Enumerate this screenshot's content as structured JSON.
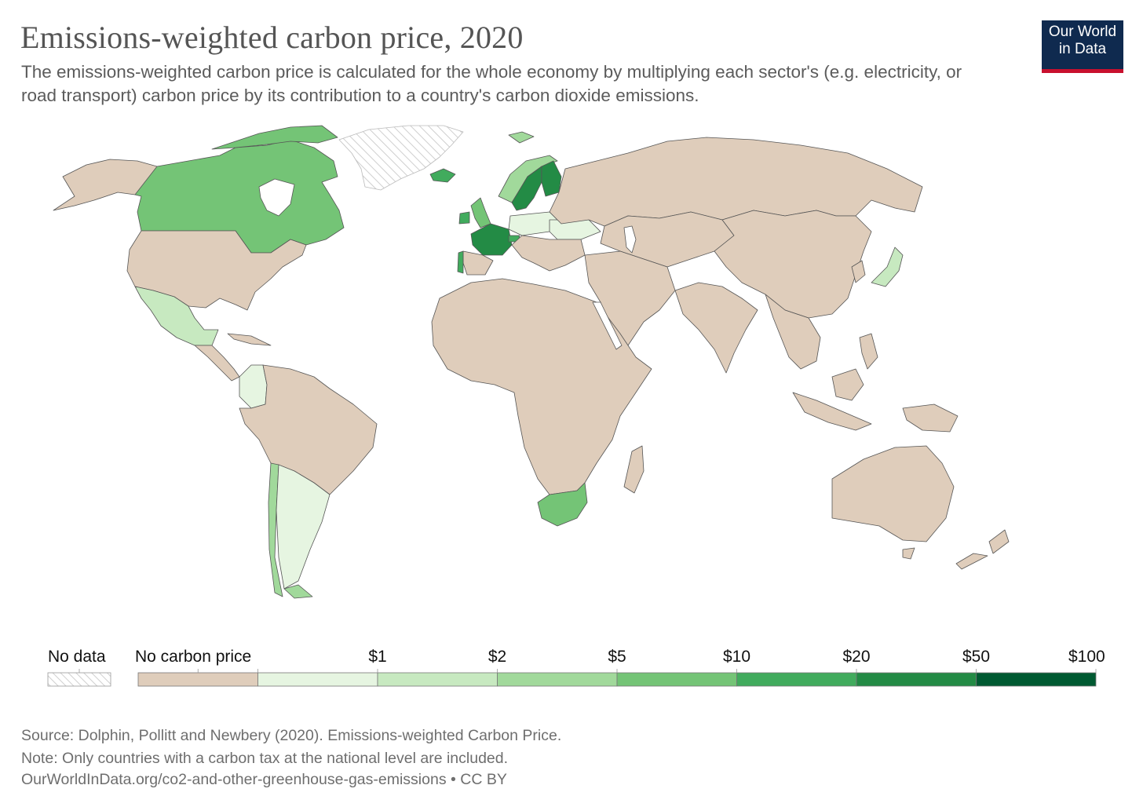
{
  "header": {
    "title": "Emissions-weighted carbon price, 2020",
    "subtitle": "The emissions-weighted carbon price is calculated for the whole economy by multiplying each sector's (e.g. electricity, or road transport) carbon price by its contribution to a country's carbon dioxide emissions.",
    "logo_line1": "Our World",
    "logo_line2": "in Data"
  },
  "colors": {
    "no_carbon_price": "#dfcdbb",
    "bin_1": "#e6f5e1",
    "bin_2": "#c7e9c0",
    "bin_3": "#a1d99b",
    "bin_4": "#74c476",
    "bin_5": "#41ab5d",
    "bin_6": "#238b45",
    "bin_7": "#005a32",
    "no_data_hatch": "#d3d3d3",
    "border": "#555555",
    "ocean": "#ffffff",
    "logo_bg": "#0f2a4f",
    "logo_accent": "#c8102e"
  },
  "legend": {
    "no_data_label": "No data",
    "no_carbon_label": "No carbon price",
    "ticks": [
      "$1",
      "$2",
      "$5",
      "$10",
      "$20",
      "$50",
      "$100"
    ]
  },
  "footer": {
    "source": "Source: Dolphin, Pollitt and Newbery (2020). Emissions-weighted Carbon Price.",
    "note": "Note: Only countries with a carbon tax at the national level are included.",
    "link": "OurWorldInData.org/co2-and-other-greenhouse-gas-emissions • CC BY"
  }
}
